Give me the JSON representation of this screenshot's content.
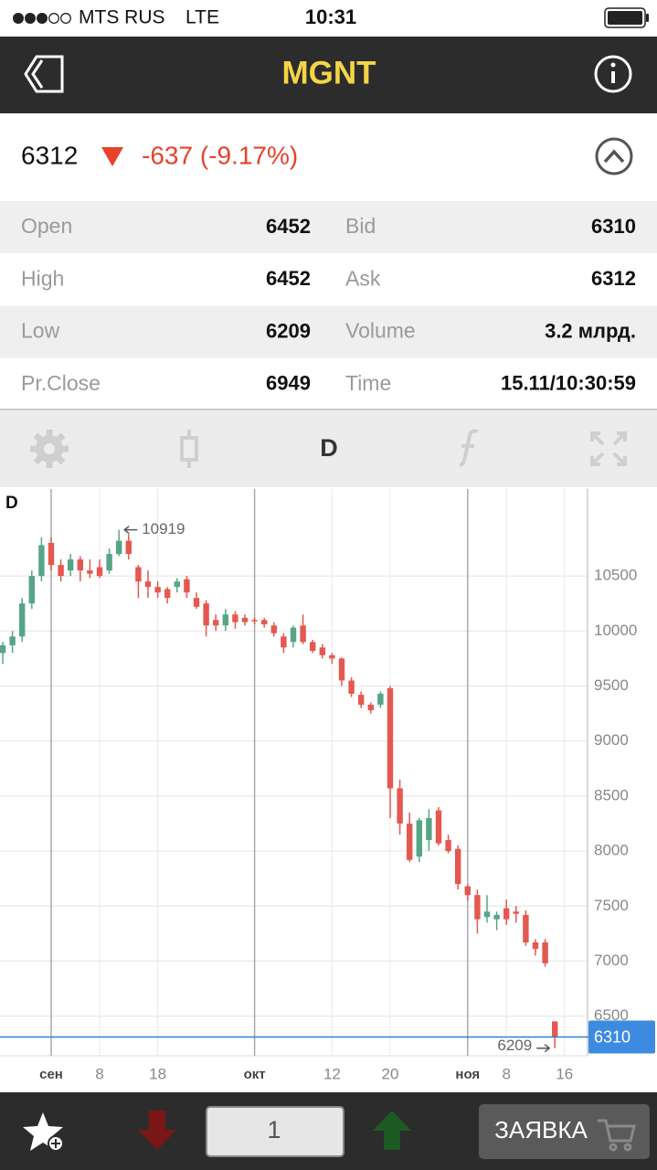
{
  "status_bar": {
    "carrier": "MTS RUS",
    "network": "LTE",
    "time": "10:31"
  },
  "header": {
    "title": "MGNT"
  },
  "quote": {
    "price": "6312",
    "change": "-637 (-9.17%)"
  },
  "quote_table": {
    "rows": [
      [
        "Open",
        "6452",
        "Bid",
        "6310"
      ],
      [
        "High",
        "6452",
        "Ask",
        "6312"
      ],
      [
        "Low",
        "6209",
        "Volume",
        "3.2 млрд."
      ],
      [
        "Pr.Close",
        "6949",
        "Time",
        "15.11/10:30:59"
      ]
    ]
  },
  "toolbar": {
    "period": "D"
  },
  "chart_data": {
    "type": "candlestick",
    "title": "D",
    "up_color": "#55a586",
    "down_color": "#e5584f",
    "categories": [
      null,
      null,
      null,
      null,
      null,
      "сен",
      null,
      null,
      null,
      null,
      "8",
      null,
      null,
      null,
      null,
      null,
      "18",
      null,
      null,
      null,
      null,
      null,
      null,
      null,
      null,
      null,
      "окт",
      null,
      null,
      null,
      null,
      null,
      null,
      null,
      "12",
      null,
      null,
      null,
      null,
      null,
      "20",
      null,
      null,
      null,
      null,
      null,
      null,
      null,
      "ноя",
      null,
      null,
      null,
      "8",
      null,
      null,
      null,
      null,
      null,
      "16"
    ],
    "open": [
      9800,
      9870,
      9950,
      10250,
      10500,
      10800,
      10600,
      10550,
      10650,
      10550,
      10580,
      10550,
      10700,
      10820,
      10580,
      10450,
      10400,
      10380,
      10400,
      10470,
      10300,
      10250,
      10100,
      10050,
      10150,
      10120,
      10100,
      10100,
      10050,
      9950,
      9900,
      10050,
      9900,
      9850,
      9780,
      9750,
      9550,
      9420,
      9330,
      9330,
      9480,
      8570,
      8250,
      7950,
      8100,
      8370,
      8100,
      8020,
      7680,
      7600,
      7400,
      7380,
      7480,
      7450,
      7420,
      7170,
      7170,
      6452,
      null
    ],
    "high": [
      9900,
      10000,
      10300,
      10550,
      10850,
      10850,
      10650,
      10700,
      10680,
      10650,
      10650,
      10750,
      10919,
      10880,
      10600,
      10550,
      10450,
      10400,
      10480,
      10500,
      10350,
      10280,
      10150,
      10200,
      10180,
      10150,
      10120,
      10120,
      10080,
      9980,
      10050,
      10150,
      9920,
      9880,
      9800,
      9760,
      9580,
      9450,
      9350,
      9450,
      9500,
      8650,
      8350,
      8300,
      8380,
      8400,
      8150,
      8050,
      7700,
      7650,
      7600,
      7450,
      7560,
      7500,
      7460,
      7200,
      7200,
      6452,
      null
    ],
    "low": [
      9700,
      9800,
      9900,
      10200,
      10450,
      10550,
      10450,
      10500,
      10450,
      10480,
      10480,
      10520,
      10680,
      10650,
      10300,
      10300,
      10300,
      10250,
      10350,
      10300,
      10200,
      9950,
      10000,
      10000,
      10020,
      10050,
      10060,
      10030,
      9950,
      9800,
      9850,
      9880,
      9800,
      9750,
      9700,
      9500,
      9400,
      9300,
      9250,
      9300,
      8300,
      8150,
      7900,
      7900,
      8000,
      8050,
      7980,
      7650,
      7550,
      7250,
      7350,
      7280,
      7330,
      7350,
      7140,
      7050,
      6950,
      6209,
      null
    ],
    "close": [
      9870,
      9950,
      10250,
      10500,
      10780,
      10600,
      10500,
      10650,
      10550,
      10520,
      10500,
      10700,
      10820,
      10700,
      10450,
      10400,
      10350,
      10300,
      10450,
      10350,
      10220,
      10050,
      10050,
      10150,
      10080,
      10080,
      10090,
      10060,
      9980,
      9850,
      10030,
      9900,
      9820,
      9780,
      9750,
      9550,
      9430,
      9330,
      9280,
      9430,
      8570,
      8250,
      7920,
      8280,
      8300,
      8070,
      8000,
      7700,
      7600,
      7380,
      7450,
      7420,
      7380,
      7430,
      7170,
      7110,
      6980,
      6312,
      null
    ],
    "ylim": [
      6140,
      11290
    ],
    "yticks": [
      6500,
      7000,
      7500,
      8000,
      8500,
      9000,
      9500,
      10000,
      10500
    ],
    "grid": true,
    "last_price": 6310,
    "high_label": 10919,
    "low_label": 6209
  },
  "bottom_bar": {
    "quantity": "1",
    "order_button": "ЗАЯВКА"
  }
}
